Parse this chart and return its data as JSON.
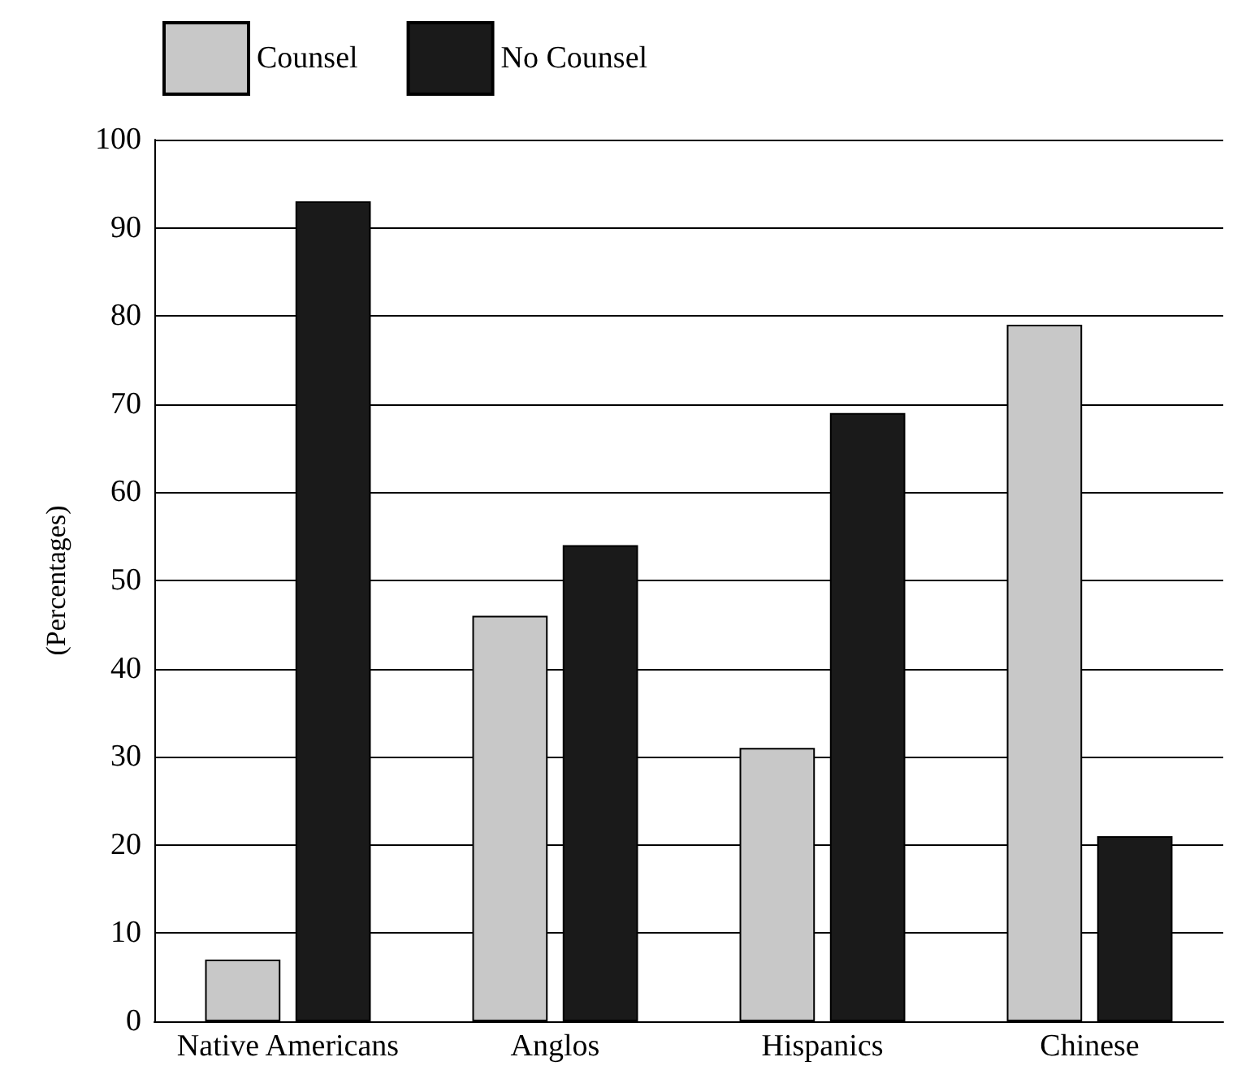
{
  "chart_data": {
    "type": "bar",
    "ylabel": "(Percentages)",
    "categories": [
      "Native Americans",
      "Anglos",
      "Hispanics",
      "Chinese"
    ],
    "series": [
      {
        "name": "Counsel",
        "color": "#c8c8c8",
        "values": [
          7,
          46,
          31,
          79
        ]
      },
      {
        "name": "No Counsel",
        "color": "#1a1a1a",
        "values": [
          93,
          54,
          69,
          21
        ]
      }
    ],
    "ylim": [
      0,
      100
    ],
    "yticks": [
      0,
      10,
      20,
      30,
      40,
      50,
      60,
      70,
      80,
      90,
      100
    ],
    "grid": "y",
    "legend": "top left"
  }
}
